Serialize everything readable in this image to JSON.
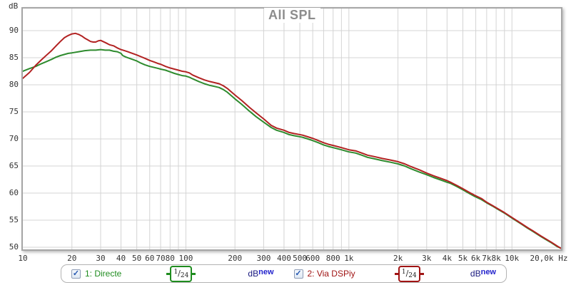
{
  "title": "All SPL",
  "y_axis_unit": "dB",
  "x_axis_unit": "Hz",
  "chart_data": {
    "type": "line",
    "title": "All SPL",
    "x_scale": "log",
    "xlim": [
      10,
      20000
    ],
    "ylim": [
      50,
      90
    ],
    "xlabel": "Hz",
    "ylabel": "dB",
    "grid": true,
    "grid_color": "#d4d4d4",
    "legend_position": "bottom",
    "y_gridlines": [
      50,
      55,
      60,
      65,
      70,
      75,
      80,
      85,
      90
    ],
    "y_ticks": [
      {
        "db": 90,
        "label": "90"
      },
      {
        "db": 85,
        "label": "85"
      },
      {
        "db": 80,
        "label": "80"
      },
      {
        "db": 75,
        "label": "75"
      },
      {
        "db": 70,
        "label": "70"
      },
      {
        "db": 65,
        "label": "65"
      },
      {
        "db": 60,
        "label": "60"
      },
      {
        "db": 55,
        "label": "55"
      },
      {
        "db": 50,
        "label": "50"
      }
    ],
    "x_gridlines": [
      20,
      30,
      40,
      50,
      60,
      70,
      80,
      90,
      100,
      200,
      300,
      400,
      500,
      600,
      700,
      800,
      900,
      1000,
      2000,
      3000,
      4000,
      5000,
      6000,
      7000,
      8000,
      9000,
      10000
    ],
    "x_ticks": [
      {
        "f": 10,
        "label": "10"
      },
      {
        "f": 20,
        "label": "20"
      },
      {
        "f": 30,
        "label": "30"
      },
      {
        "f": 40,
        "label": "40"
      },
      {
        "f": 50,
        "label": "50"
      },
      {
        "f": 60,
        "label": "60"
      },
      {
        "f": 70,
        "label": "70"
      },
      {
        "f": 80,
        "label": "80"
      },
      {
        "f": 100,
        "label": "100"
      },
      {
        "f": 200,
        "label": "200"
      },
      {
        "f": 300,
        "label": "300"
      },
      {
        "f": 400,
        "label": "400"
      },
      {
        "f": 500,
        "label": "500"
      },
      {
        "f": 600,
        "label": "600"
      },
      {
        "f": 800,
        "label": "800"
      },
      {
        "f": 1000,
        "label": "1k"
      },
      {
        "f": 2000,
        "label": "2k"
      },
      {
        "f": 3000,
        "label": "3k"
      },
      {
        "f": 4000,
        "label": "4k"
      },
      {
        "f": 5000,
        "label": "5k"
      },
      {
        "f": 6000,
        "label": "6k"
      },
      {
        "f": 7000,
        "label": "7k"
      },
      {
        "f": 8000,
        "label": "8k"
      },
      {
        "f": 10000,
        "label": "10k"
      },
      {
        "f": 20000,
        "label": "20,0k"
      }
    ],
    "series": [
      {
        "name": "1: Directe",
        "color": "#2e8b2e",
        "points": [
          [
            10,
            82.5
          ],
          [
            11,
            83.0
          ],
          [
            12,
            83.4
          ],
          [
            13,
            83.9
          ],
          [
            14,
            84.3
          ],
          [
            15,
            84.7
          ],
          [
            16,
            85.1
          ],
          [
            17,
            85.4
          ],
          [
            18,
            85.6
          ],
          [
            19,
            85.8
          ],
          [
            20,
            85.9
          ],
          [
            22,
            86.1
          ],
          [
            24,
            86.3
          ],
          [
            26,
            86.4
          ],
          [
            28,
            86.4
          ],
          [
            30,
            86.5
          ],
          [
            32,
            86.4
          ],
          [
            34,
            86.4
          ],
          [
            36,
            86.2
          ],
          [
            38,
            86.1
          ],
          [
            40,
            85.8
          ],
          [
            41,
            85.4
          ],
          [
            43,
            85.1
          ],
          [
            45,
            84.9
          ],
          [
            47,
            84.7
          ],
          [
            50,
            84.4
          ],
          [
            53,
            84.0
          ],
          [
            56,
            83.7
          ],
          [
            60,
            83.4
          ],
          [
            64,
            83.2
          ],
          [
            68,
            83.0
          ],
          [
            70,
            82.9
          ],
          [
            75,
            82.7
          ],
          [
            80,
            82.4
          ],
          [
            85,
            82.1
          ],
          [
            90,
            81.9
          ],
          [
            95,
            81.7
          ],
          [
            100,
            81.6
          ],
          [
            105,
            81.4
          ],
          [
            110,
            81.1
          ],
          [
            120,
            80.6
          ],
          [
            130,
            80.2
          ],
          [
            140,
            79.9
          ],
          [
            150,
            79.7
          ],
          [
            160,
            79.5
          ],
          [
            170,
            79.1
          ],
          [
            180,
            78.6
          ],
          [
            200,
            77.4
          ],
          [
            220,
            76.4
          ],
          [
            246,
            75.1
          ],
          [
            270,
            74.1
          ],
          [
            300,
            73.1
          ],
          [
            334,
            72.1
          ],
          [
            360,
            71.6
          ],
          [
            400,
            71.2
          ],
          [
            430,
            70.8
          ],
          [
            460,
            70.6
          ],
          [
            520,
            70.3
          ],
          [
            560,
            70.0
          ],
          [
            600,
            69.7
          ],
          [
            650,
            69.3
          ],
          [
            700,
            68.9
          ],
          [
            750,
            68.6
          ],
          [
            800,
            68.4
          ],
          [
            900,
            68.0
          ],
          [
            1000,
            67.6
          ],
          [
            1100,
            67.4
          ],
          [
            1200,
            67.0
          ],
          [
            1300,
            66.6
          ],
          [
            1400,
            66.4
          ],
          [
            1500,
            66.2
          ],
          [
            1600,
            66.0
          ],
          [
            1800,
            65.7
          ],
          [
            2000,
            65.4
          ],
          [
            2200,
            65.0
          ],
          [
            2400,
            64.5
          ],
          [
            2700,
            63.9
          ],
          [
            3000,
            63.4
          ],
          [
            3300,
            62.9
          ],
          [
            3600,
            62.5
          ],
          [
            4000,
            62.0
          ],
          [
            4200,
            61.8
          ],
          [
            4600,
            61.2
          ],
          [
            5000,
            60.6
          ],
          [
            5500,
            59.9
          ],
          [
            5900,
            59.4
          ],
          [
            6500,
            58.8
          ],
          [
            7000,
            58.2
          ],
          [
            7600,
            57.6
          ],
          [
            8200,
            57.0
          ],
          [
            9000,
            56.3
          ],
          [
            10000,
            55.4
          ],
          [
            11400,
            54.3
          ],
          [
            12500,
            53.5
          ],
          [
            13500,
            52.9
          ],
          [
            15000,
            52.0
          ],
          [
            16000,
            51.5
          ],
          [
            17500,
            50.8
          ],
          [
            19000,
            50.1
          ],
          [
            20000,
            49.8
          ]
        ]
      },
      {
        "name": "2: Via DSPiy",
        "color": "#b22222",
        "points": [
          [
            10,
            81.2
          ],
          [
            11,
            82.3
          ],
          [
            12,
            83.6
          ],
          [
            13,
            84.6
          ],
          [
            14,
            85.5
          ],
          [
            15,
            86.3
          ],
          [
            16,
            87.2
          ],
          [
            17,
            88.0
          ],
          [
            18,
            88.7
          ],
          [
            19,
            89.1
          ],
          [
            20,
            89.4
          ],
          [
            21,
            89.5
          ],
          [
            22,
            89.3
          ],
          [
            23,
            89.0
          ],
          [
            24,
            88.6
          ],
          [
            25,
            88.3
          ],
          [
            26,
            88.0
          ],
          [
            27,
            87.9
          ],
          [
            28,
            87.9
          ],
          [
            29,
            88.1
          ],
          [
            30,
            88.2
          ],
          [
            31,
            88.0
          ],
          [
            32,
            87.8
          ],
          [
            33,
            87.6
          ],
          [
            34,
            87.4
          ],
          [
            36,
            87.2
          ],
          [
            38,
            86.8
          ],
          [
            40,
            86.5
          ],
          [
            42,
            86.3
          ],
          [
            44,
            86.1
          ],
          [
            46,
            85.9
          ],
          [
            48,
            85.7
          ],
          [
            50,
            85.5
          ],
          [
            53,
            85.2
          ],
          [
            56,
            84.9
          ],
          [
            60,
            84.5
          ],
          [
            64,
            84.2
          ],
          [
            68,
            83.9
          ],
          [
            70,
            83.8
          ],
          [
            75,
            83.4
          ],
          [
            80,
            83.1
          ],
          [
            85,
            82.9
          ],
          [
            90,
            82.7
          ],
          [
            95,
            82.5
          ],
          [
            100,
            82.4
          ],
          [
            105,
            82.2
          ],
          [
            110,
            81.8
          ],
          [
            120,
            81.3
          ],
          [
            130,
            80.9
          ],
          [
            140,
            80.6
          ],
          [
            150,
            80.4
          ],
          [
            160,
            80.2
          ],
          [
            170,
            79.8
          ],
          [
            180,
            79.3
          ],
          [
            200,
            78.1
          ],
          [
            220,
            77.1
          ],
          [
            246,
            75.8
          ],
          [
            270,
            74.8
          ],
          [
            300,
            73.7
          ],
          [
            334,
            72.5
          ],
          [
            360,
            72.0
          ],
          [
            400,
            71.6
          ],
          [
            430,
            71.2
          ],
          [
            460,
            71.0
          ],
          [
            520,
            70.7
          ],
          [
            560,
            70.4
          ],
          [
            600,
            70.1
          ],
          [
            650,
            69.7
          ],
          [
            700,
            69.3
          ],
          [
            750,
            69.0
          ],
          [
            800,
            68.8
          ],
          [
            900,
            68.4
          ],
          [
            1000,
            68.0
          ],
          [
            1100,
            67.8
          ],
          [
            1200,
            67.4
          ],
          [
            1300,
            67.0
          ],
          [
            1400,
            66.8
          ],
          [
            1500,
            66.6
          ],
          [
            1600,
            66.4
          ],
          [
            1800,
            66.1
          ],
          [
            2000,
            65.8
          ],
          [
            2200,
            65.4
          ],
          [
            2400,
            64.9
          ],
          [
            2700,
            64.3
          ],
          [
            3000,
            63.7
          ],
          [
            3300,
            63.2
          ],
          [
            3600,
            62.8
          ],
          [
            4000,
            62.3
          ],
          [
            4200,
            62.0
          ],
          [
            4600,
            61.4
          ],
          [
            5000,
            60.8
          ],
          [
            5500,
            60.1
          ],
          [
            5900,
            59.6
          ],
          [
            6500,
            59.0
          ],
          [
            7000,
            58.3
          ],
          [
            7600,
            57.7
          ],
          [
            8200,
            57.1
          ],
          [
            9000,
            56.4
          ],
          [
            10000,
            55.5
          ],
          [
            11400,
            54.4
          ],
          [
            12500,
            53.6
          ],
          [
            13500,
            53.0
          ],
          [
            15000,
            52.1
          ],
          [
            16000,
            51.6
          ],
          [
            17500,
            50.9
          ],
          [
            19000,
            50.2
          ],
          [
            20000,
            49.8
          ]
        ]
      }
    ]
  },
  "legend": {
    "items": [
      {
        "label": "1: Directe",
        "label_color": "#1f8c1f",
        "accent_color": "#1f8c1f",
        "checked": true,
        "check_glyph": "✓",
        "smoothing_num": "1",
        "smoothing_sep": "/",
        "smoothing_den": "24",
        "unit_db": "dB",
        "unit_new": "new"
      },
      {
        "label": "2: Via DSPiy",
        "label_color": "#a01414",
        "accent_color": "#a01414",
        "checked": true,
        "check_glyph": "✓",
        "smoothing_num": "1",
        "smoothing_sep": "/",
        "smoothing_den": "24",
        "unit_db": "dB",
        "unit_new": "new"
      }
    ]
  }
}
